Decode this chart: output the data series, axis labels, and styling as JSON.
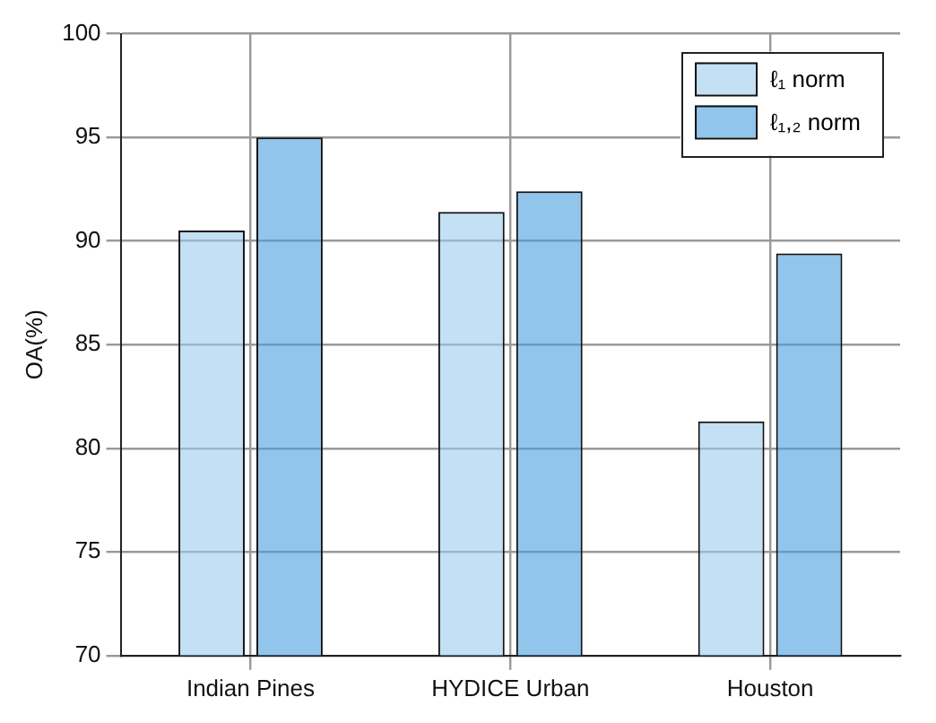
{
  "chart_data": {
    "type": "bar",
    "ylabel": "OA(%)",
    "categories": [
      "Indian Pines",
      "HYDICE Urban",
      "Houston"
    ],
    "series": [
      {
        "name": "ℓ₁ norm",
        "color": "#9ccbef",
        "values": [
          90.5,
          91.4,
          81.3
        ]
      },
      {
        "name": "ℓ₁,₂ norm",
        "color": "#4a9fe0",
        "values": [
          95.0,
          92.4,
          89.4
        ]
      }
    ],
    "ylim": [
      70,
      100
    ],
    "yticks": [
      70,
      75,
      80,
      85,
      90,
      95,
      100
    ],
    "grid": true,
    "legend": "top right"
  }
}
